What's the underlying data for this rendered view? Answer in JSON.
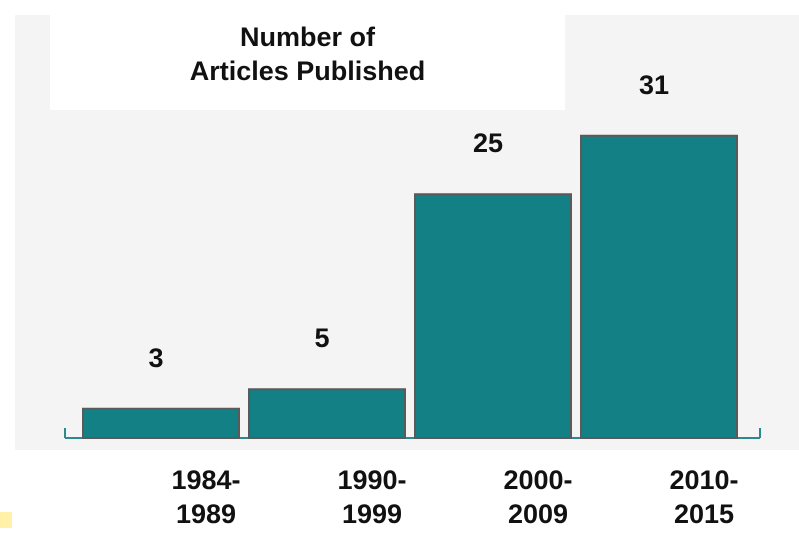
{
  "chart_data": {
    "type": "bar",
    "title": "Number of\nArticles Published",
    "categories": [
      "1984-\n1989",
      "1990-\n1999",
      "2000-\n2009",
      "2010-\n2015"
    ],
    "values": [
      3,
      5,
      25,
      31
    ],
    "color": "#138086",
    "ylim": [
      0,
      32
    ]
  }
}
